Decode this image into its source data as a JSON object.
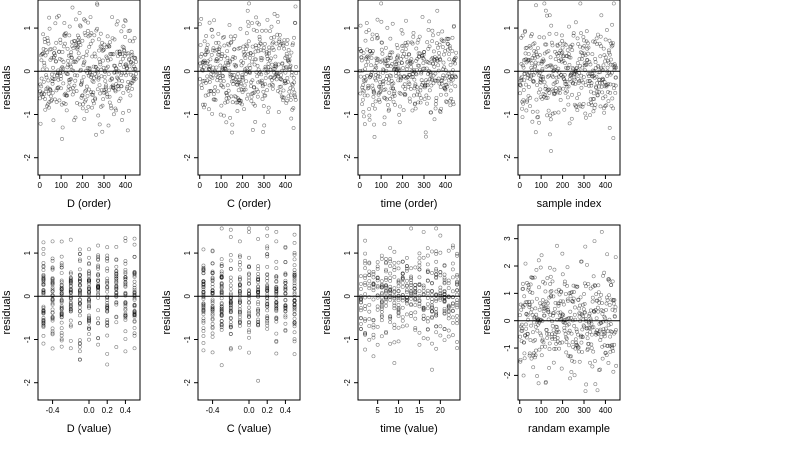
{
  "chart_data": [
    {
      "type": "scatter",
      "xlabel": "D (order)",
      "ylabel": "residuals",
      "xlim": [
        -8,
        468
      ],
      "ylim": [
        -2.4,
        1.65
      ],
      "xticks": [
        0,
        100,
        200,
        300,
        400
      ],
      "yticks": [
        -2,
        -1,
        0,
        1
      ],
      "hline": 0,
      "pattern": "order",
      "seed": 11
    },
    {
      "type": "scatter",
      "xlabel": "C (order)",
      "ylabel": "residuals",
      "xlim": [
        -8,
        468
      ],
      "ylim": [
        -2.4,
        1.65
      ],
      "xticks": [
        0,
        100,
        200,
        300,
        400
      ],
      "yticks": [
        -2,
        -1,
        0,
        1
      ],
      "hline": 0,
      "pattern": "order",
      "seed": 23
    },
    {
      "type": "scatter",
      "xlabel": "time (order)",
      "ylabel": "residuals",
      "xlim": [
        -8,
        468
      ],
      "ylim": [
        -2.4,
        1.65
      ],
      "xticks": [
        0,
        100,
        200,
        300,
        400
      ],
      "yticks": [
        -2,
        -1,
        0,
        1
      ],
      "hline": 0,
      "pattern": "time-order",
      "seed": 37
    },
    {
      "type": "scatter",
      "xlabel": "sample index",
      "ylabel": "residuals",
      "xlim": [
        -8,
        468
      ],
      "ylim": [
        -2.4,
        1.65
      ],
      "xticks": [
        0,
        100,
        200,
        300,
        400
      ],
      "yticks": [
        -2,
        -1,
        0,
        1
      ],
      "hline": 0,
      "pattern": "index",
      "seed": 41
    },
    {
      "type": "scatter",
      "xlabel": "D (value)",
      "ylabel": "residuals",
      "xlim": [
        -0.56,
        0.56
      ],
      "ylim": [
        -2.4,
        1.65
      ],
      "xticks": [
        -0.4,
        0.0,
        0.2,
        0.4
      ],
      "xtick_labels": [
        "-0.4",
        "0.0",
        "0.2",
        "0.4"
      ],
      "yticks": [
        -2,
        -1,
        0,
        1
      ],
      "hline": 0,
      "pattern": "discrete",
      "x_levels": [
        -0.5,
        -0.4,
        -0.3,
        -0.2,
        -0.1,
        0.0,
        0.1,
        0.2,
        0.3,
        0.4,
        0.5
      ],
      "seed": 53
    },
    {
      "type": "scatter",
      "xlabel": "C (value)",
      "ylabel": "residuals",
      "xlim": [
        -0.56,
        0.56
      ],
      "ylim": [
        -2.4,
        1.65
      ],
      "xticks": [
        -0.4,
        0.0,
        0.2,
        0.4
      ],
      "xtick_labels": [
        "-0.4",
        "0.0",
        "0.2",
        "0.4"
      ],
      "yticks": [
        -2,
        -1,
        0,
        1
      ],
      "hline": 0,
      "pattern": "discrete",
      "x_levels": [
        -0.5,
        -0.4,
        -0.3,
        -0.2,
        -0.1,
        0.0,
        0.1,
        0.2,
        0.3,
        0.4,
        0.5
      ],
      "seed": 67
    },
    {
      "type": "scatter",
      "xlabel": "time (value)",
      "ylabel": "residuals",
      "xlim": [
        0.3,
        24.7
      ],
      "ylim": [
        -2.4,
        1.65
      ],
      "xticks": [
        5,
        10,
        15,
        20
      ],
      "yticks": [
        -2,
        -1,
        0,
        1
      ],
      "hline": 0,
      "pattern": "discrete",
      "x_levels": [
        1,
        2,
        3,
        4,
        5,
        6,
        7,
        8,
        9,
        10,
        11,
        12,
        13,
        14,
        15,
        16,
        17,
        18,
        19,
        20,
        21,
        22,
        23,
        24
      ],
      "seed": 79
    },
    {
      "type": "scatter",
      "xlabel": "randam example",
      "ylabel": "residuals",
      "xlim": [
        -8,
        468
      ],
      "ylim": [
        -2.9,
        3.5
      ],
      "xticks": [
        0,
        100,
        200,
        300,
        400
      ],
      "yticks": [
        -2,
        -1,
        0,
        1,
        2,
        3
      ],
      "hline": 0,
      "pattern": "random",
      "seed": 97
    }
  ],
  "point_count": 450
}
